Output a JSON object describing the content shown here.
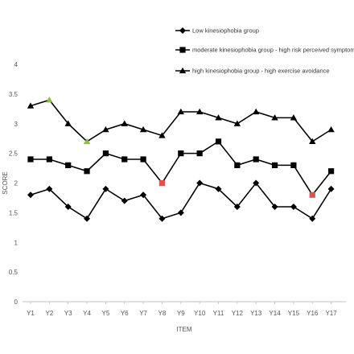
{
  "chart_data": {
    "type": "line",
    "title": "",
    "xlabel": "ITEM",
    "ylabel": "SCORE",
    "ylim": [
      0,
      4
    ],
    "yticks": [
      "0",
      "0.5",
      "1",
      "1.5",
      "2",
      "2.5",
      "3",
      "3.5",
      "4"
    ],
    "grid": false,
    "legend_position": "top-right",
    "categories": [
      "Y1",
      "Y2",
      "Y3",
      "Y4",
      "Y5",
      "Y6",
      "Y7",
      "Y8",
      "Y9",
      "Y10",
      "Y11",
      "Y12",
      "Y13",
      "Y14",
      "Y15",
      "Y16",
      "Y17"
    ],
    "series": [
      {
        "name": "Low kinesiophobia group",
        "marker": "diamond",
        "color": "#000000",
        "values": [
          1.8,
          1.9,
          1.6,
          1.4,
          1.9,
          1.7,
          1.8,
          1.4,
          1.5,
          2.0,
          1.9,
          1.6,
          2.0,
          1.6,
          1.6,
          1.4,
          1.9
        ]
      },
      {
        "name": "moderate kinesiophobia group - high risk perceived symptoms",
        "marker": "square",
        "color": "#000000",
        "values": [
          2.4,
          2.4,
          2.3,
          2.2,
          2.5,
          2.4,
          2.4,
          2.0,
          2.5,
          2.5,
          2.7,
          2.3,
          2.4,
          2.3,
          2.3,
          1.8,
          2.2
        ],
        "highlight_color": "#d9544f",
        "highlighted": [
          "Y8",
          "Y16"
        ]
      },
      {
        "name": "high kinesiophobia group - high exercise avoidance",
        "marker": "triangle",
        "color": "#000000",
        "values": [
          3.3,
          3.4,
          3.0,
          2.7,
          2.9,
          3.0,
          2.9,
          2.8,
          3.2,
          3.2,
          3.1,
          3.0,
          3.2,
          3.1,
          3.1,
          2.7,
          2.9
        ],
        "highlight_color": "#8fbc45",
        "highlighted": [
          "Y2",
          "Y4"
        ]
      }
    ]
  }
}
